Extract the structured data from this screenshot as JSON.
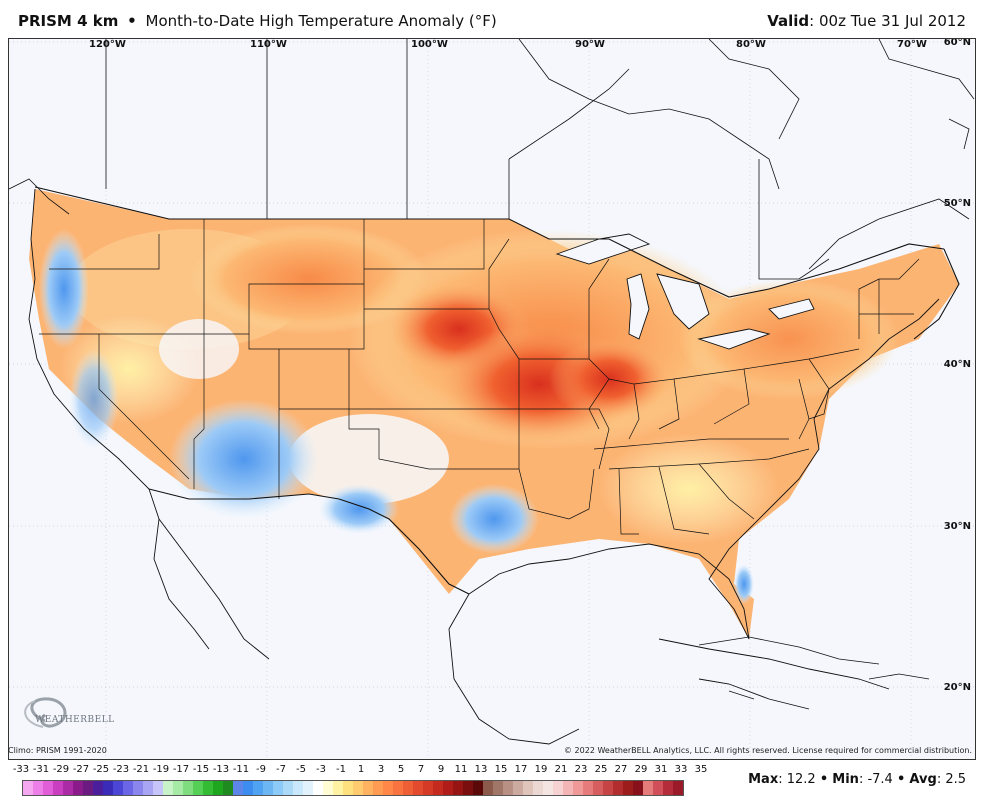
{
  "header": {
    "product": "PRISM 4 km",
    "separator": "•",
    "title": "Month-to-Date High Temperature Anomaly (°F)",
    "valid_label": "Valid",
    "valid_value": ": 00z Tue 31 Jul 2012"
  },
  "map": {
    "longitude_labels": [
      "120°W",
      "110°W",
      "100°W",
      "90°W",
      "80°W",
      "70°W"
    ],
    "latitude_labels": [
      "60°N",
      "50°N",
      "40°N",
      "30°N",
      "20°N"
    ],
    "logo_text": "WEATHERBELL"
  },
  "footer": {
    "climo": "Climo: PRISM 1991-2020",
    "copyright": "© 2022 WeatherBELL Analytics, LLC. All rights reserved. License required for commercial distribution."
  },
  "legend": {
    "ticks": [
      "-33",
      "-31",
      "-29",
      "-27",
      "-25",
      "-23",
      "-21",
      "-19",
      "-17",
      "-15",
      "-13",
      "-11",
      "-9",
      "-7",
      "-5",
      "-3",
      "-1",
      "1",
      "3",
      "5",
      "7",
      "9",
      "11",
      "13",
      "15",
      "17",
      "19",
      "21",
      "23",
      "25",
      "27",
      "29",
      "31",
      "33",
      "35"
    ],
    "colors": [
      "#f5a7f0",
      "#ee7fe8",
      "#e15ed8",
      "#c93fbf",
      "#ab2aa5",
      "#8b1a8a",
      "#6a1a80",
      "#4b1f9b",
      "#3a2cb8",
      "#4c46d6",
      "#6a66e6",
      "#8a86ee",
      "#a8a6f4",
      "#c6c4f8",
      "#c8f3c8",
      "#a6eaa6",
      "#7fdd7f",
      "#56cf56",
      "#34bd34",
      "#1ea61e",
      "#1f8a1f",
      "#5d86e8",
      "#3d8cf0",
      "#4fa3f2",
      "#6cb6f4",
      "#8ccaf7",
      "#abdaf9",
      "#c9e8fb",
      "#e2f2fc",
      "#ffffff",
      "#fffbd2",
      "#fff2a3",
      "#ffe07f",
      "#ffcb6e",
      "#ffb25f",
      "#ff9b52",
      "#ff8748",
      "#f97340",
      "#ef5f36",
      "#e24b2e",
      "#d43a26",
      "#c52a1f",
      "#b01d18",
      "#961412",
      "#7a0e0e",
      "#5a0808",
      "#8b5a4a",
      "#a07668",
      "#b89184",
      "#cdaaa0",
      "#dfc4bb",
      "#ecd8d3",
      "#f4e4e2",
      "#f6d2d2",
      "#f3b5b5",
      "#ef9999",
      "#e57b7b",
      "#d75e5e",
      "#c64444",
      "#b22e2e",
      "#9c1c1c",
      "#87101a",
      "#e67b7b",
      "#d14f58",
      "#b42b3a",
      "#9a1a2a"
    ]
  },
  "stats": {
    "max_label": "Max",
    "max_value": ": 12.2",
    "min_label": "Min",
    "min_value": ": -7.4",
    "avg_label": "Avg",
    "avg_value": ": 2.5",
    "separator": "•"
  }
}
